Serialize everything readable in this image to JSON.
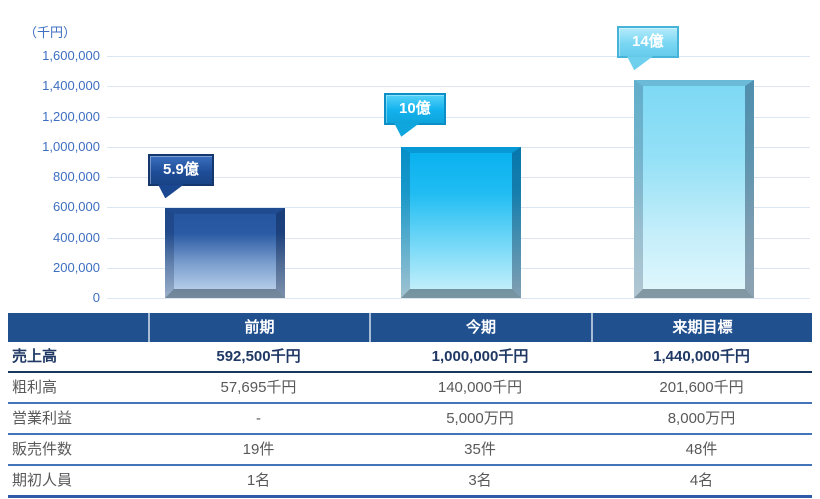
{
  "chart_data": {
    "type": "bar",
    "title": "",
    "unit_label": "（千円）",
    "categories": [
      "前期",
      "今期",
      "来期目標"
    ],
    "values": [
      592500,
      1000000,
      1440000
    ],
    "bar_callout_labels": [
      "5.9億",
      "10億",
      "14億"
    ],
    "ylim": [
      0,
      1600000
    ],
    "ytick_interval": 200000,
    "ytick_labels_top_to_bottom": [
      "1,600,000",
      "1,400,000",
      "1,200,000",
      "1,000,000",
      "800,000",
      "600,000",
      "400,000",
      "200,000",
      "0"
    ],
    "grid": true,
    "legend": "none",
    "bar_top_colors": [
      "#24549E",
      "#07B0F0",
      "#7CD8F4"
    ],
    "bar_bottom_colors": [
      "#C6DBF0",
      "#CFF2FB",
      "#E2F8FD"
    ],
    "callout_fill_colors": [
      "#1E4C96",
      "#12B2EE",
      "#7AD7F3"
    ]
  },
  "table": {
    "columns": [
      "",
      "前期",
      "今期",
      "来期目標"
    ],
    "rows": [
      {
        "label": "売上高",
        "values": [
          "592,500千円",
          "1,000,000千円",
          "1,440,000千円"
        ],
        "emphasis": true
      },
      {
        "label": "粗利高",
        "values": [
          "57,695千円",
          "140,000千円",
          "201,600千円"
        ],
        "emphasis": false
      },
      {
        "label": "営業利益",
        "values": [
          "-",
          "5,000万円",
          "8,000万円"
        ],
        "emphasis": false
      },
      {
        "label": "販売件数",
        "values": [
          "19件",
          "35件",
          "48件"
        ],
        "emphasis": false
      },
      {
        "label": "期初人員",
        "values": [
          "1名",
          "3名",
          "4名"
        ],
        "emphasis": false
      }
    ]
  },
  "colors": {
    "axis_text": "#3E6FC1",
    "gridline": "#DCE6F3",
    "table_header_bg": "#21508F",
    "table_header_text": "#FFFFFF",
    "table_row_text": "#595959",
    "table_emphasis_text": "#1F3864",
    "row_divider": "#4374B9",
    "bottom_border": "#2E5AA8"
  }
}
